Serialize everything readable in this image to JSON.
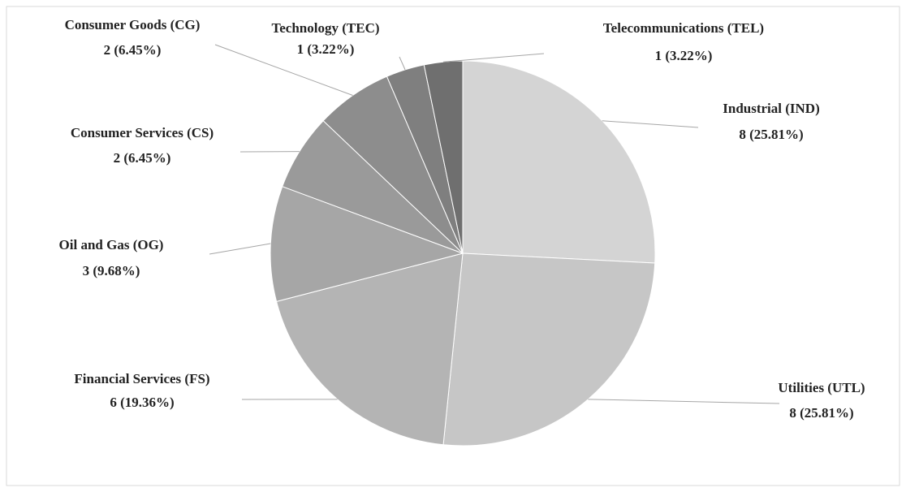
{
  "chart_data": {
    "type": "pie",
    "categories": [
      "Industrial (IND)",
      "Utilities (UTL)",
      "Financial Services (FS)",
      "Oil and Gas (OG)",
      "Consumer Services (CS)",
      "Consumer Goods (CG)",
      "Technology (TEC)",
      "Telecommunications (TEL)"
    ],
    "values": [
      8,
      8,
      6,
      3,
      2,
      2,
      1,
      1
    ],
    "value_labels": [
      "8 (25.81%)",
      "8 (25.81%)",
      "6 (19.36%)",
      "3 (9.68%)",
      "2 (6.45%)",
      "2 (6.45%)",
      "1 (3.22%)",
      "1 (3.22%)"
    ],
    "colors": [
      "#d4d4d4",
      "#c6c6c6",
      "#b4b4b4",
      "#a6a6a6",
      "#9a9a9a",
      "#8d8d8d",
      "#7f7f7f",
      "#6f6f6f"
    ]
  }
}
